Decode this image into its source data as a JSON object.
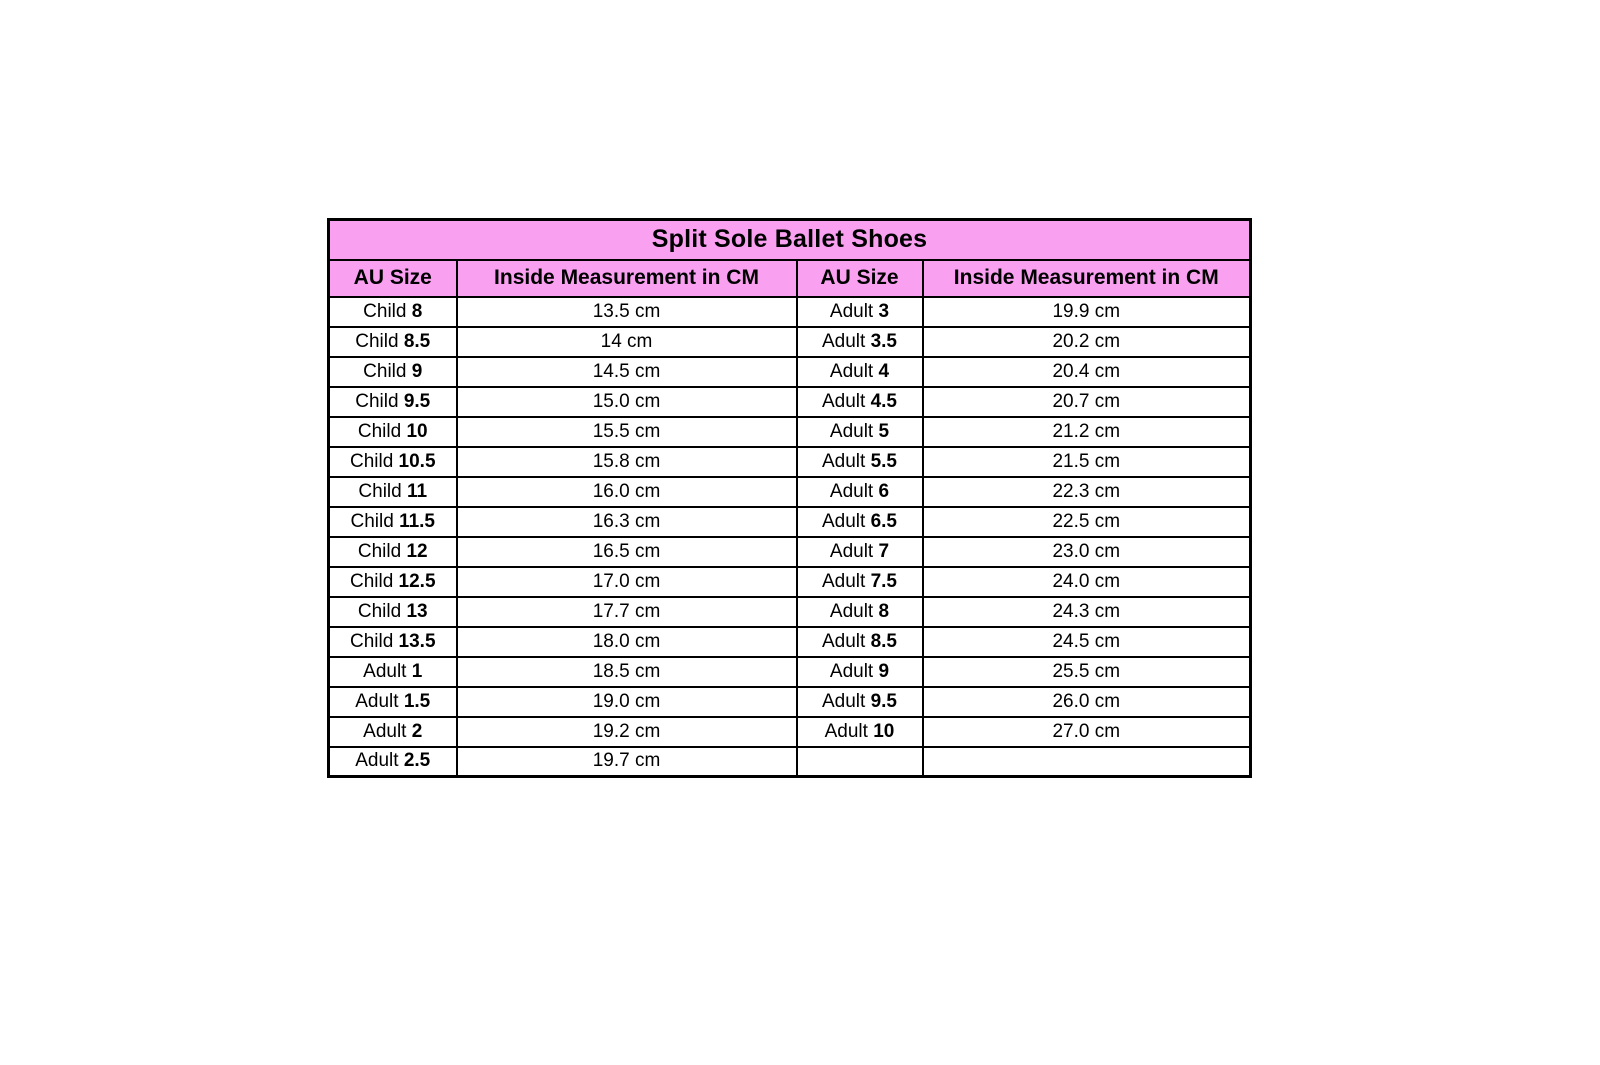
{
  "colors": {
    "header_bg": "#F9A0F0",
    "border": "#000000",
    "text": "#000000",
    "page_bg": "#ffffff"
  },
  "chart_data": {
    "type": "table",
    "title": "Split Sole Ballet Shoes",
    "columns": [
      "AU Size",
      "Inside Measurement in CM",
      "AU Size",
      "Inside Measurement in CM"
    ],
    "rows": [
      [
        "Child 8",
        "13.5 cm",
        "Adult 3",
        "19.9 cm"
      ],
      [
        "Child 8.5",
        "14 cm",
        "Adult 3.5",
        "20.2 cm"
      ],
      [
        "Child 9",
        "14.5 cm",
        "Adult 4",
        "20.4 cm"
      ],
      [
        "Child 9.5",
        "15.0 cm",
        "Adult 4.5",
        "20.7 cm"
      ],
      [
        "Child 10",
        "15.5 cm",
        "Adult 5",
        "21.2 cm"
      ],
      [
        "Child 10.5",
        "15.8 cm",
        "Adult 5.5",
        "21.5 cm"
      ],
      [
        "Child 11",
        "16.0 cm",
        "Adult 6",
        "22.3 cm"
      ],
      [
        "Child 11.5",
        "16.3 cm",
        "Adult 6.5",
        "22.5 cm"
      ],
      [
        "Child 12",
        "16.5 cm",
        "Adult 7",
        "23.0 cm"
      ],
      [
        "Child 12.5",
        "17.0 cm",
        "Adult 7.5",
        "24.0 cm"
      ],
      [
        "Child 13",
        "17.7 cm",
        "Adult 8",
        "24.3 cm"
      ],
      [
        "Child 13.5",
        "18.0 cm",
        "Adult 8.5",
        "24.5 cm"
      ],
      [
        "Adult 1",
        "18.5 cm",
        "Adult 9",
        "25.5 cm"
      ],
      [
        "Adult 1.5",
        "19.0 cm",
        "Adult 9.5",
        "26.0 cm"
      ],
      [
        "Adult 2",
        "19.2 cm",
        "Adult 10",
        "27.0 cm"
      ],
      [
        "Adult 2.5",
        "19.7 cm",
        "",
        ""
      ]
    ]
  }
}
